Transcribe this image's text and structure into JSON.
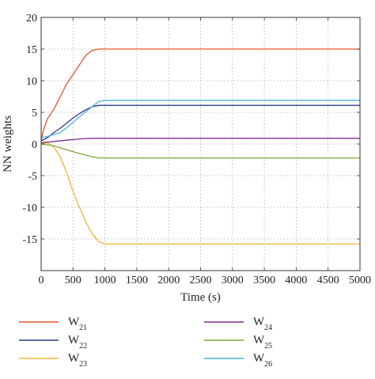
{
  "chart_data": {
    "type": "line",
    "xlabel": "Time (s)",
    "ylabel": "NN weights",
    "xlim": [
      0,
      5000
    ],
    "ylim": [
      -20,
      20
    ],
    "x_ticks": [
      0,
      500,
      1000,
      1500,
      2000,
      2500,
      3000,
      3500,
      4000,
      4500,
      5000
    ],
    "y_ticks": [
      -15,
      -10,
      -5,
      0,
      5,
      10,
      15,
      20
    ],
    "grid": true,
    "grid_style": "dotted",
    "legend_position": "bottom",
    "series": [
      {
        "name": "W",
        "sub": "21",
        "color": "#e0562a",
        "x": [
          0,
          30,
          100,
          200,
          300,
          400,
          500,
          600,
          700,
          800,
          900,
          1000,
          1500,
          2000,
          2500,
          3000,
          3500,
          4000,
          4500,
          5000
        ],
        "y": [
          0.5,
          2,
          4,
          5.5,
          7.5,
          9.5,
          11,
          12.5,
          14,
          14.8,
          15,
          15,
          15,
          15,
          15,
          15,
          15,
          15,
          15,
          15
        ]
      },
      {
        "name": "W",
        "sub": "22",
        "color": "#2e3a8c",
        "x": [
          0,
          100,
          200,
          300,
          400,
          500,
          600,
          700,
          800,
          900,
          1000,
          1500,
          2000,
          2500,
          3000,
          3500,
          4000,
          4500,
          5000
        ],
        "y": [
          0.5,
          1,
          1.8,
          2.5,
          3.3,
          4.1,
          4.8,
          5.4,
          5.9,
          6.1,
          6.1,
          6.1,
          6.1,
          6.1,
          6.1,
          6.1,
          6.1,
          6.1,
          6.1
        ]
      },
      {
        "name": "W",
        "sub": "23",
        "color": "#f2b53a",
        "x": [
          0,
          100,
          200,
          300,
          400,
          500,
          600,
          700,
          800,
          900,
          1000,
          1500,
          2000,
          2500,
          3000,
          3500,
          4000,
          4500,
          5000
        ],
        "y": [
          0,
          0.2,
          -0.5,
          -2,
          -4.5,
          -7.5,
          -10,
          -12.3,
          -14.2,
          -15.4,
          -15.8,
          -15.8,
          -15.8,
          -15.8,
          -15.8,
          -15.8,
          -15.8,
          -15.8,
          -15.8
        ]
      },
      {
        "name": "W",
        "sub": "24",
        "color": "#7b2d8e",
        "x": [
          0,
          200,
          400,
          600,
          800,
          1000,
          1500,
          2000,
          2500,
          3000,
          3500,
          4000,
          4500,
          5000
        ],
        "y": [
          0.2,
          0.4,
          0.6,
          0.8,
          0.9,
          0.9,
          0.9,
          0.9,
          0.9,
          0.9,
          0.9,
          0.9,
          0.9,
          0.9
        ]
      },
      {
        "name": "W",
        "sub": "25",
        "color": "#7fa83a",
        "x": [
          0,
          200,
          400,
          600,
          800,
          900,
          1000,
          1500,
          2000,
          2500,
          3000,
          3500,
          4000,
          4500,
          5000
        ],
        "y": [
          0,
          -0.3,
          -0.9,
          -1.5,
          -2,
          -2.2,
          -2.2,
          -2.2,
          -2.2,
          -2.2,
          -2.2,
          -2.2,
          -2.2,
          -2.2,
          -2.2
        ]
      },
      {
        "name": "W",
        "sub": "26",
        "color": "#4eb0e0",
        "x": [
          0,
          100,
          200,
          300,
          400,
          500,
          600,
          700,
          800,
          900,
          1000,
          1500,
          2000,
          2500,
          3000,
          3500,
          4000,
          4500,
          5000
        ],
        "y": [
          1,
          1.2,
          1.5,
          1.8,
          2.6,
          3.4,
          4.3,
          5.1,
          5.9,
          6.7,
          6.9,
          6.9,
          6.9,
          6.9,
          6.9,
          6.9,
          6.9,
          6.9,
          6.9
        ]
      }
    ]
  }
}
